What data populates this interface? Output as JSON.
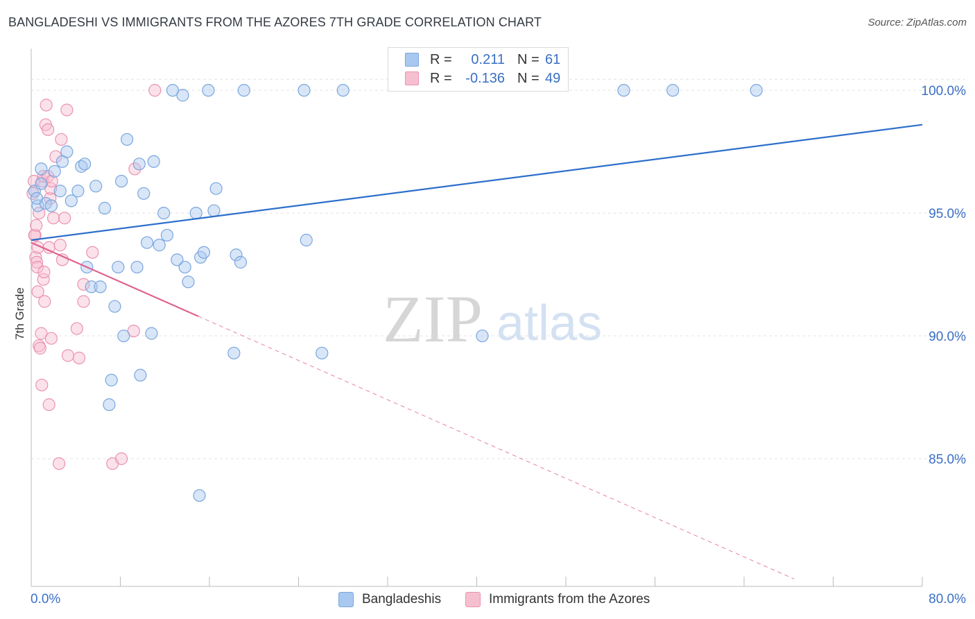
{
  "title": "BANGLADESHI VS IMMIGRANTS FROM THE AZORES 7TH GRADE CORRELATION CHART",
  "source": "Source: ZipAtlas.com",
  "watermark": {
    "zip": "ZIP",
    "atlas": "atlas"
  },
  "legend": {
    "r_label": "R =",
    "n_label": "N =",
    "series": [
      {
        "r": "0.211",
        "n": "61"
      },
      {
        "r": "-0.136",
        "n": "49"
      }
    ]
  },
  "bottom_legend": [
    "Bangladeshis",
    "Immigrants from the Azores"
  ],
  "colors": {
    "blue_fill": "#a9c8ef",
    "blue_stroke": "#7aa6dd",
    "blue_line": "#2c6fcc",
    "pink_fill": "#f6bfd0",
    "pink_stroke": "#eb92b1",
    "pink_line": "#e0628e",
    "tick_text": "#3a6fc4",
    "grid": "#e3e3e3"
  },
  "chart_data": {
    "type": "scatter",
    "title": "BANGLADESHI VS IMMIGRANTS FROM THE AZORES 7TH GRADE CORRELATION CHART",
    "xlabel": "",
    "ylabel": "7th Grade",
    "xlim": [
      0,
      80
    ],
    "ylim": [
      79.8,
      101.7
    ],
    "x_tick_labels": [
      "0.0%",
      "80.0%"
    ],
    "y_ticks": [
      85,
      90,
      95,
      100
    ],
    "y_tick_labels": [
      "85.0%",
      "90.0%",
      "95.0%",
      "100.0%"
    ],
    "series": [
      {
        "name": "Bangladeshis",
        "r": 0.211,
        "n": 61,
        "trend": {
          "x": [
            0,
            80
          ],
          "y": [
            93.9,
            98.6
          ]
        },
        "points": [
          [
            0.3,
            95.9
          ],
          [
            0.6,
            95.3
          ],
          [
            0.9,
            96.2
          ],
          [
            0.9,
            96.8
          ],
          [
            1.3,
            95.4
          ],
          [
            1.8,
            95.3
          ],
          [
            2.1,
            96.7
          ],
          [
            2.6,
            95.9
          ],
          [
            2.8,
            97.1
          ],
          [
            3.2,
            97.5
          ],
          [
            3.6,
            95.5
          ],
          [
            4.2,
            95.9
          ],
          [
            4.5,
            96.9
          ],
          [
            4.8,
            97.0
          ],
          [
            5.0,
            92.8
          ],
          [
            5.4,
            92.0
          ],
          [
            5.8,
            96.1
          ],
          [
            6.2,
            92.0
          ],
          [
            6.6,
            95.2
          ],
          [
            7.5,
            91.2
          ],
          [
            7.8,
            92.8
          ],
          [
            8.1,
            96.3
          ],
          [
            8.3,
            90.0
          ],
          [
            8.6,
            98.0
          ],
          [
            9.5,
            92.8
          ],
          [
            9.7,
            97.0
          ],
          [
            10.1,
            95.8
          ],
          [
            10.4,
            93.8
          ],
          [
            10.8,
            90.1
          ],
          [
            11.0,
            97.1
          ],
          [
            11.5,
            93.7
          ],
          [
            11.9,
            95.0
          ],
          [
            12.2,
            94.1
          ],
          [
            12.7,
            100.0
          ],
          [
            13.1,
            93.1
          ],
          [
            13.6,
            99.8
          ],
          [
            13.8,
            92.8
          ],
          [
            14.1,
            92.2
          ],
          [
            14.8,
            95.0
          ],
          [
            15.2,
            93.2
          ],
          [
            15.5,
            93.4
          ],
          [
            15.9,
            100.0
          ],
          [
            16.4,
            95.1
          ],
          [
            16.6,
            96.0
          ],
          [
            18.2,
            89.3
          ],
          [
            18.4,
            93.3
          ],
          [
            18.8,
            93.0
          ],
          [
            19.1,
            100.0
          ],
          [
            24.5,
            100.0
          ],
          [
            24.7,
            93.9
          ],
          [
            26.1,
            89.3
          ],
          [
            28.0,
            100.0
          ],
          [
            40.5,
            90.0
          ],
          [
            53.2,
            100.0
          ],
          [
            57.6,
            100.0
          ],
          [
            65.1,
            100.0
          ],
          [
            7.0,
            87.2
          ],
          [
            7.2,
            88.2
          ],
          [
            9.8,
            88.4
          ],
          [
            15.1,
            83.5
          ],
          [
            0.5,
            95.6
          ]
        ]
      },
      {
        "name": "Immigrants from the Azores",
        "r": -0.136,
        "n": 49,
        "trend": {
          "x": [
            0,
            15
          ],
          "y": [
            93.8,
            90.8
          ]
        },
        "trend_dashed": {
          "x": [
            15,
            68.5
          ],
          "y": [
            90.8,
            80.1
          ]
        },
        "points": [
          [
            0.15,
            95.8
          ],
          [
            0.25,
            96.3
          ],
          [
            0.35,
            94.1
          ],
          [
            0.4,
            93.2
          ],
          [
            0.5,
            93.0
          ],
          [
            0.55,
            92.8
          ],
          [
            0.6,
            91.8
          ],
          [
            0.7,
            89.6
          ],
          [
            0.7,
            95.0
          ],
          [
            0.8,
            89.5
          ],
          [
            0.9,
            90.1
          ],
          [
            0.95,
            88.0
          ],
          [
            1.0,
            96.3
          ],
          [
            1.1,
            96.5
          ],
          [
            1.1,
            92.3
          ],
          [
            1.15,
            92.6
          ],
          [
            1.2,
            91.4
          ],
          [
            1.3,
            98.6
          ],
          [
            1.35,
            99.4
          ],
          [
            1.5,
            96.5
          ],
          [
            1.6,
            93.6
          ],
          [
            1.6,
            87.2
          ],
          [
            1.7,
            95.6
          ],
          [
            1.75,
            96.0
          ],
          [
            1.8,
            89.9
          ],
          [
            1.85,
            96.3
          ],
          [
            2.0,
            94.8
          ],
          [
            2.2,
            97.3
          ],
          [
            2.5,
            84.8
          ],
          [
            2.6,
            93.7
          ],
          [
            2.7,
            98.0
          ],
          [
            2.8,
            93.1
          ],
          [
            3.0,
            94.8
          ],
          [
            3.2,
            99.2
          ],
          [
            3.3,
            89.2
          ],
          [
            4.1,
            90.3
          ],
          [
            4.3,
            89.1
          ],
          [
            4.7,
            91.4
          ],
          [
            4.7,
            92.1
          ],
          [
            5.5,
            93.4
          ],
          [
            7.3,
            84.8
          ],
          [
            8.1,
            85.0
          ],
          [
            9.2,
            90.2
          ],
          [
            9.3,
            96.8
          ],
          [
            11.1,
            100.0
          ],
          [
            1.5,
            98.4
          ],
          [
            0.3,
            94.1
          ],
          [
            0.6,
            93.6
          ],
          [
            0.45,
            94.5
          ]
        ]
      }
    ]
  }
}
